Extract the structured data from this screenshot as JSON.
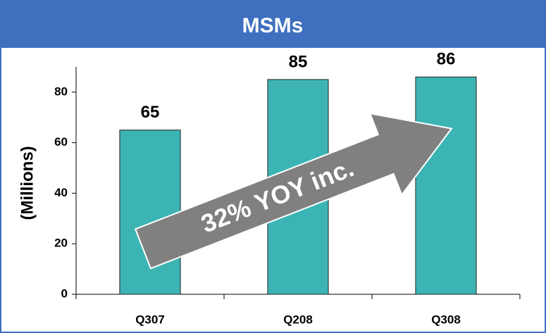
{
  "chart_data": {
    "type": "bar",
    "title": "MSMs",
    "y_label": "(Millions)",
    "categories": [
      "Q307",
      "Q208",
      "Q308"
    ],
    "values": [
      65,
      85,
      86
    ],
    "color": "#3cb4b4",
    "ylim": [
      0,
      90
    ],
    "yticks": [
      0,
      20,
      40,
      60,
      80
    ],
    "grid": false,
    "annotation": "32% YOY inc."
  }
}
